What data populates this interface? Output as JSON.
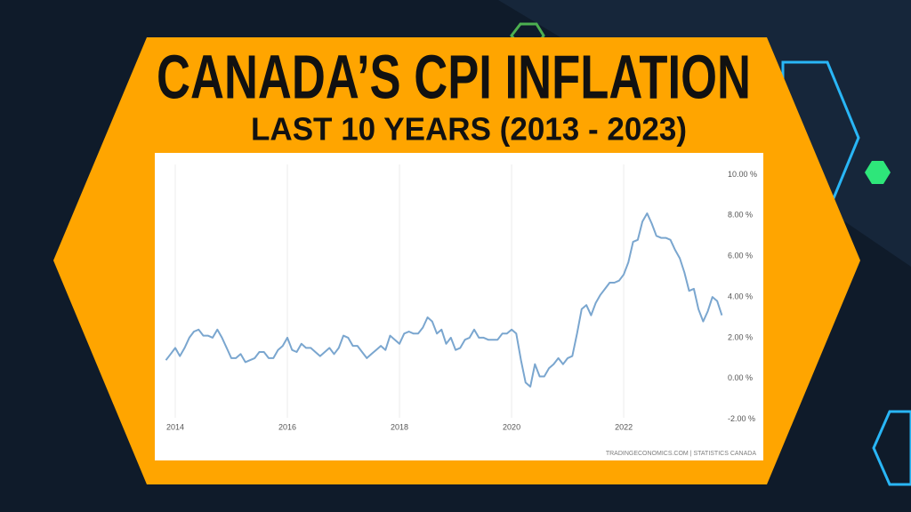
{
  "chart_data": {
    "type": "line",
    "title": "CANADA’S CPI INFLATION",
    "subtitle": "LAST 10 YEARS (2013 - 2023)",
    "source": "TRADINGECONOMICS.COM  |  STATISTICS CANADA",
    "color": "#7aa6cf",
    "grid": true,
    "xlim": [
      2013.635,
      2023.76
    ],
    "xticks": [
      2014,
      2016,
      2018,
      2020,
      2022
    ],
    "ylim": [
      -2.8,
      10.5
    ],
    "yticks": [
      {
        "value": -2,
        "label": "-2.00 %"
      },
      {
        "value": 0,
        "label": "0.00 %"
      },
      {
        "value": 2,
        "label": "2.00 %"
      },
      {
        "value": 4,
        "label": "4.00 %"
      },
      {
        "value": 6,
        "label": "6.00 %"
      },
      {
        "value": 8,
        "label": "8.00 %"
      },
      {
        "value": 10,
        "label": "10.00 %"
      }
    ],
    "x": [
      2013.833,
      2013.917,
      2014,
      2014.083,
      2014.167,
      2014.25,
      2014.333,
      2014.417,
      2014.5,
      2014.583,
      2014.667,
      2014.75,
      2014.833,
      2014.917,
      2015,
      2015.083,
      2015.167,
      2015.25,
      2015.333,
      2015.417,
      2015.5,
      2015.583,
      2015.667,
      2015.75,
      2015.833,
      2015.917,
      2016,
      2016.083,
      2016.167,
      2016.25,
      2016.333,
      2016.417,
      2016.5,
      2016.583,
      2016.667,
      2016.75,
      2016.833,
      2016.917,
      2017,
      2017.083,
      2017.167,
      2017.25,
      2017.333,
      2017.417,
      2017.5,
      2017.583,
      2017.667,
      2017.75,
      2017.833,
      2017.917,
      2018,
      2018.083,
      2018.167,
      2018.25,
      2018.333,
      2018.417,
      2018.5,
      2018.583,
      2018.667,
      2018.75,
      2018.833,
      2018.917,
      2019,
      2019.083,
      2019.167,
      2019.25,
      2019.333,
      2019.417,
      2019.5,
      2019.583,
      2019.667,
      2019.75,
      2019.833,
      2019.917,
      2020,
      2020.083,
      2020.167,
      2020.25,
      2020.333,
      2020.417,
      2020.5,
      2020.583,
      2020.667,
      2020.75,
      2020.833,
      2020.917,
      2021,
      2021.083,
      2021.167,
      2021.25,
      2021.333,
      2021.417,
      2021.5,
      2021.583,
      2021.667,
      2021.75,
      2021.833,
      2021.917,
      2022,
      2022.083,
      2022.167,
      2022.25,
      2022.333,
      2022.417,
      2022.5,
      2022.583,
      2022.667,
      2022.75,
      2022.833,
      2022.917,
      2023,
      2023.083,
      2023.167,
      2023.25,
      2023.333,
      2023.417,
      2023.5,
      2023.583,
      2023.667,
      2023.75
    ],
    "values": [
      0.9,
      1.2,
      1.5,
      1.1,
      1.5,
      2.0,
      2.3,
      2.4,
      2.1,
      2.1,
      2.0,
      2.4,
      2.0,
      1.5,
      1.0,
      1.0,
      1.2,
      0.8,
      0.9,
      1.0,
      1.3,
      1.3,
      1.0,
      1.0,
      1.4,
      1.6,
      2.0,
      1.4,
      1.3,
      1.7,
      1.5,
      1.5,
      1.3,
      1.1,
      1.3,
      1.5,
      1.2,
      1.5,
      2.1,
      2.0,
      1.6,
      1.6,
      1.3,
      1.0,
      1.2,
      1.4,
      1.6,
      1.4,
      2.1,
      1.9,
      1.7,
      2.2,
      2.3,
      2.2,
      2.2,
      2.5,
      3.0,
      2.8,
      2.2,
      2.4,
      1.7,
      2.0,
      1.4,
      1.5,
      1.9,
      2.0,
      2.4,
      2.0,
      2.0,
      1.9,
      1.9,
      1.9,
      2.2,
      2.2,
      2.4,
      2.2,
      0.9,
      -0.2,
      -0.4,
      0.7,
      0.1,
      0.1,
      0.5,
      0.7,
      1.0,
      0.7,
      1.0,
      1.1,
      2.2,
      3.4,
      3.6,
      3.1,
      3.7,
      4.1,
      4.4,
      4.7,
      4.7,
      4.8,
      5.1,
      5.7,
      6.7,
      6.8,
      7.7,
      8.1,
      7.6,
      7.0,
      6.9,
      6.9,
      6.8,
      6.3,
      5.9,
      5.2,
      4.3,
      4.4,
      3.4,
      2.8,
      3.3,
      4.0,
      3.8,
      3.1
    ]
  }
}
